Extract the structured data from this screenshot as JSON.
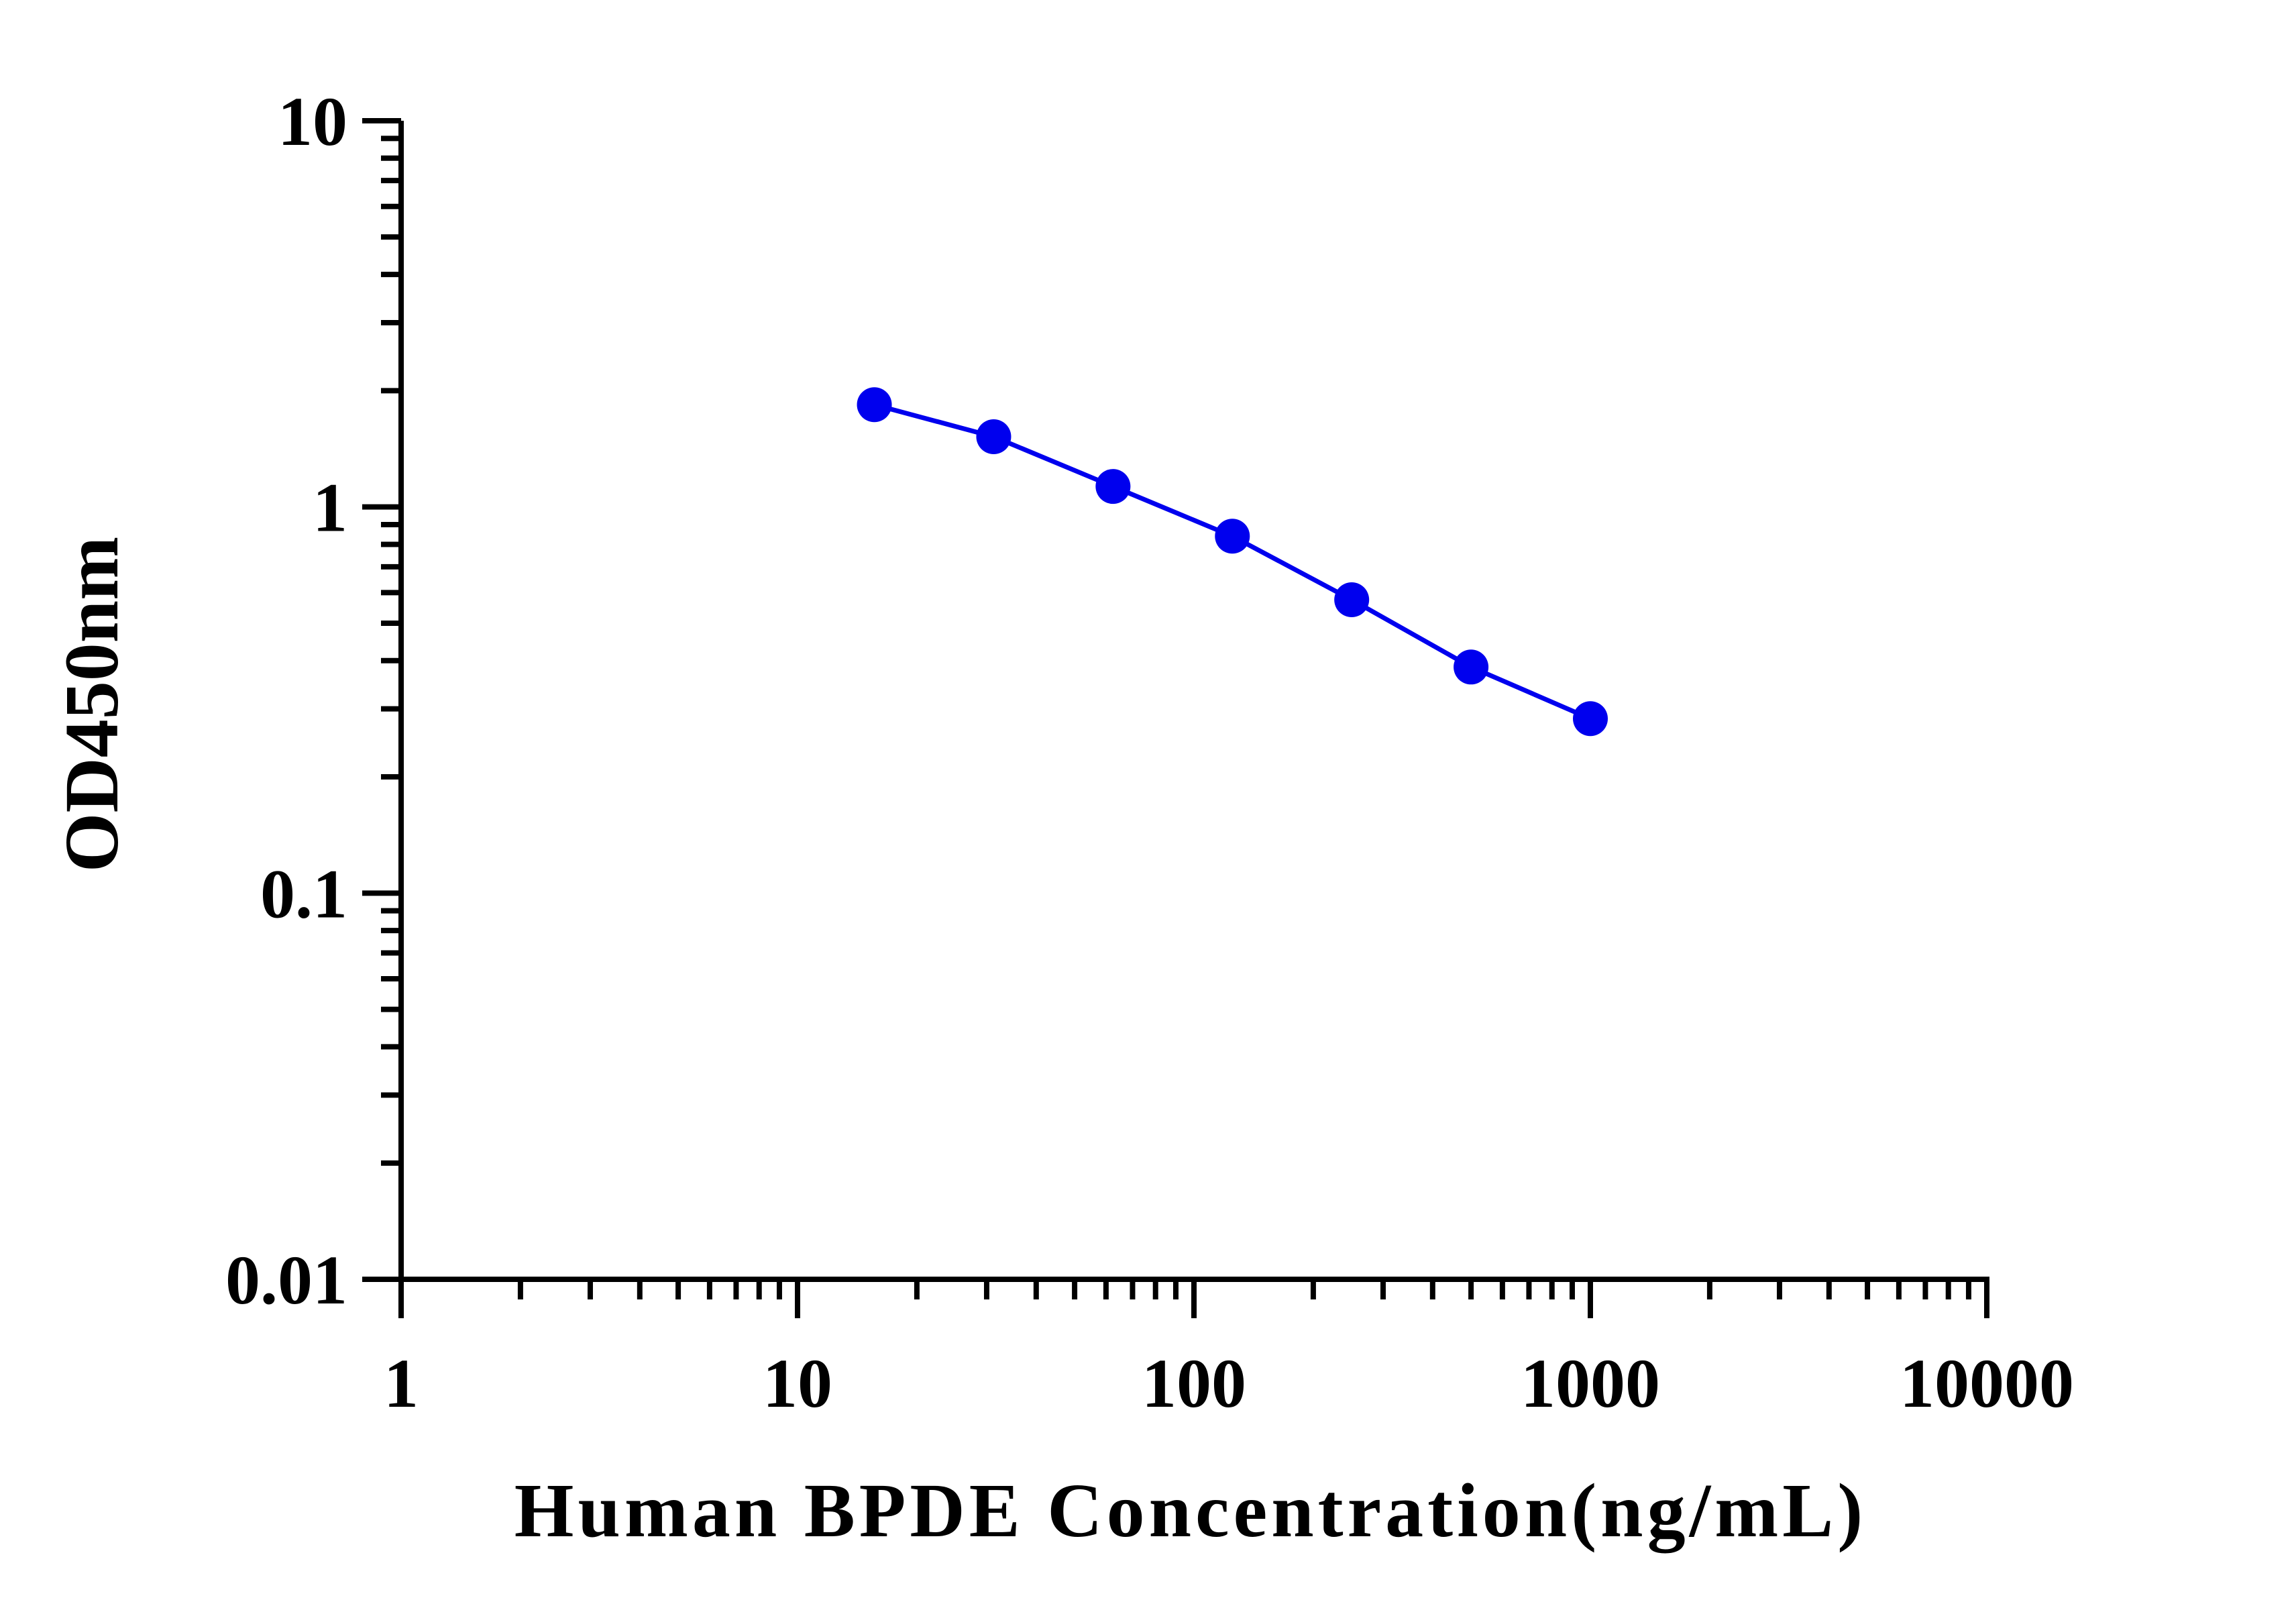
{
  "chart_data": {
    "type": "scatter",
    "title": "",
    "xlabel": "Human BPDE Concentration(ng/mL)",
    "ylabel": "OD450nm",
    "x_scale": "log",
    "y_scale": "log",
    "xlim": [
      1,
      10000
    ],
    "ylim": [
      0.01,
      10
    ],
    "x_ticks": [
      "1",
      "10",
      "100",
      "1000",
      "10000"
    ],
    "y_ticks": [
      "0.01",
      "0.1",
      "1",
      "10"
    ],
    "grid": false,
    "legend": "none",
    "series": [
      {
        "x": [
          15.625,
          31.25,
          62.5,
          125,
          250,
          500,
          1000
        ],
        "y": [
          1.84,
          1.52,
          1.13,
          0.84,
          0.575,
          0.385,
          0.283
        ],
        "color": "#0000ee",
        "marker": "circle",
        "connected": true
      }
    ]
  }
}
